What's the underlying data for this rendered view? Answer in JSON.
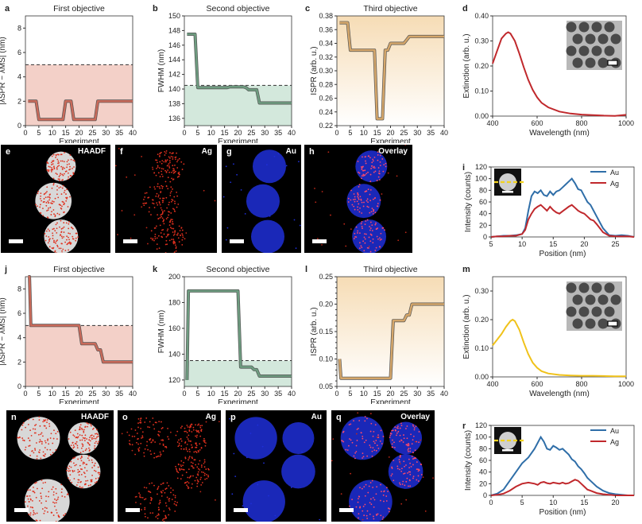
{
  "charts": {
    "a": {
      "letter": "a",
      "title": "First objective",
      "xlabel": "Experiment",
      "ylabel": "|λSPR − λMS| (nm)",
      "xlim": [
        0,
        40
      ],
      "ylim": [
        0,
        9
      ],
      "xticks": [
        0,
        5,
        10,
        15,
        20,
        25,
        30,
        35,
        40
      ],
      "yticks": [
        0,
        2,
        4,
        6,
        8
      ],
      "threshold": 5,
      "shade": "below",
      "shade_color": "#f3d0c8",
      "line_color": "#c86a5a",
      "x": [
        1,
        2,
        3,
        4,
        5,
        6,
        7,
        8,
        9,
        10,
        11,
        12,
        13,
        14,
        15,
        16,
        17,
        18,
        19,
        20,
        21,
        22,
        23,
        24,
        25,
        26,
        27,
        28,
        29,
        30,
        31,
        32,
        33,
        34,
        35,
        36,
        37,
        38,
        39,
        40
      ],
      "y": [
        2,
        2,
        2,
        2,
        0.5,
        0.5,
        0.5,
        0.5,
        0.5,
        0.5,
        0.5,
        0.5,
        0.5,
        0.5,
        2,
        2,
        2,
        0.5,
        0.5,
        0.5,
        0.5,
        0.5,
        0.5,
        0.5,
        0.5,
        0.5,
        2,
        2,
        2,
        2,
        2,
        2,
        2,
        2,
        2,
        2,
        2,
        2,
        2,
        2
      ]
    },
    "b": {
      "letter": "b",
      "title": "Second objective",
      "xlabel": "Experiment",
      "ylabel": "FWHM (nm)",
      "xlim": [
        0,
        40
      ],
      "ylim": [
        135,
        150
      ],
      "xticks": [
        0,
        5,
        10,
        15,
        20,
        25,
        30,
        35,
        40
      ],
      "yticks": [
        136,
        138,
        140,
        142,
        144,
        146,
        148,
        150
      ],
      "threshold": 140.5,
      "shade": "below",
      "shade_color": "#d3e8dc",
      "line_color": "#6e9c80",
      "x": [
        1,
        2,
        3,
        4,
        5,
        6,
        7,
        8,
        9,
        10,
        11,
        12,
        13,
        14,
        15,
        16,
        17,
        18,
        19,
        20,
        21,
        22,
        23,
        24,
        25,
        26,
        27,
        28,
        29,
        30,
        31,
        32,
        33,
        34,
        35,
        36,
        37,
        38,
        39,
        40
      ],
      "y": [
        147.5,
        147.5,
        147.5,
        147.5,
        140.2,
        140.2,
        140.2,
        140.2,
        140.2,
        140.2,
        140.2,
        140.2,
        140.2,
        140.2,
        140.2,
        140.2,
        140.3,
        140.3,
        140.3,
        140.3,
        140.3,
        140.3,
        140.2,
        139.9,
        139.9,
        139.9,
        139.9,
        138.1,
        138.1,
        138.1,
        138.1,
        138.1,
        138.1,
        138.1,
        138.1,
        138.1,
        138.1,
        138.1,
        138.1,
        138.1
      ]
    },
    "c": {
      "letter": "c",
      "title": "Third objective",
      "xlabel": "Experiment",
      "ylabel": "ISPR (arb. u.)",
      "xlim": [
        0,
        40
      ],
      "ylim": [
        0.22,
        0.38
      ],
      "xticks": [
        0,
        5,
        10,
        15,
        20,
        25,
        30,
        35,
        40
      ],
      "yticks": [
        0.22,
        0.24,
        0.26,
        0.28,
        0.3,
        0.32,
        0.34,
        0.36,
        0.38
      ],
      "threshold": null,
      "shade": "full",
      "shade_color": "#f6dcb5",
      "line_color": "#d4a66a",
      "x": [
        1,
        2,
        3,
        4,
        5,
        6,
        7,
        8,
        9,
        10,
        11,
        12,
        13,
        14,
        15,
        16,
        17,
        18,
        19,
        20,
        21,
        22,
        23,
        24,
        25,
        26,
        27,
        28,
        29,
        30,
        31,
        32,
        33,
        34,
        35,
        36,
        37,
        38,
        39,
        40
      ],
      "y": [
        0.37,
        0.37,
        0.37,
        0.37,
        0.33,
        0.33,
        0.33,
        0.33,
        0.33,
        0.33,
        0.33,
        0.33,
        0.33,
        0.33,
        0.23,
        0.23,
        0.23,
        0.33,
        0.33,
        0.34,
        0.34,
        0.34,
        0.34,
        0.34,
        0.34,
        0.345,
        0.35,
        0.35,
        0.35,
        0.35,
        0.35,
        0.35,
        0.35,
        0.35,
        0.35,
        0.35,
        0.35,
        0.35,
        0.35,
        0.35
      ]
    },
    "d": {
      "letter": "d",
      "xlabel": "Wavelength (nm)",
      "ylabel": "Extinction (arb. u.)",
      "xlim": [
        400,
        1000
      ],
      "ylim": [
        0,
        0.4
      ],
      "xticks": [
        400,
        600,
        800,
        1000
      ],
      "yticks": [
        0.0,
        0.1,
        0.2,
        0.3,
        0.4
      ],
      "line_color": "#c0282c",
      "x": [
        400,
        420,
        440,
        460,
        470,
        480,
        500,
        520,
        540,
        560,
        580,
        600,
        620,
        650,
        700,
        750,
        800,
        850,
        900,
        950,
        1000
      ],
      "y": [
        0.21,
        0.26,
        0.31,
        0.33,
        0.335,
        0.33,
        0.3,
        0.25,
        0.195,
        0.145,
        0.105,
        0.075,
        0.053,
        0.035,
        0.018,
        0.01,
        0.006,
        0.004,
        0.002,
        0.001,
        0.005
      ]
    },
    "i": {
      "letter": "i",
      "xlabel": "Position (nm)",
      "ylabel": "Intensity (counts)",
      "xlim": [
        5,
        28
      ],
      "ylim": [
        0,
        120
      ],
      "xticks": [
        5,
        10,
        15,
        20,
        25
      ],
      "yticks": [
        0,
        20,
        40,
        60,
        80,
        100,
        120
      ],
      "legend": [
        {
          "name": "Au",
          "color": "#2f6ea8"
        },
        {
          "name": "Ag",
          "color": "#c0282c"
        }
      ],
      "series": [
        {
          "name": "Au",
          "color": "#2f6ea8",
          "x": [
            5,
            6,
            7,
            8,
            9,
            10,
            10.5,
            11,
            11.5,
            12,
            12.5,
            13,
            13.5,
            14,
            14.5,
            15,
            15.5,
            16,
            16.5,
            17,
            17.5,
            18,
            18.5,
            19,
            19.5,
            20,
            20.5,
            21,
            21.5,
            22,
            23,
            24,
            25,
            26,
            27,
            28
          ],
          "y": [
            0,
            1,
            2,
            2,
            3,
            5,
            15,
            45,
            70,
            78,
            75,
            80,
            72,
            70,
            78,
            72,
            78,
            80,
            85,
            90,
            95,
            100,
            92,
            82,
            80,
            70,
            60,
            55,
            45,
            35,
            15,
            3,
            2,
            3,
            2,
            0
          ]
        },
        {
          "name": "Ag",
          "color": "#c0282c",
          "x": [
            5,
            6,
            7,
            8,
            9,
            10,
            10.5,
            11,
            11.5,
            12,
            12.5,
            13,
            13.5,
            14,
            14.5,
            15,
            15.5,
            16,
            16.5,
            17,
            17.5,
            18,
            18.5,
            19,
            19.5,
            20,
            20.5,
            21,
            21.5,
            22,
            23,
            24,
            25,
            26,
            27,
            28
          ],
          "y": [
            0,
            1,
            1,
            2,
            2,
            5,
            12,
            30,
            40,
            48,
            52,
            55,
            50,
            45,
            52,
            46,
            42,
            40,
            44,
            48,
            52,
            55,
            50,
            45,
            42,
            40,
            35,
            30,
            28,
            22,
            8,
            2,
            1,
            1,
            1,
            0
          ]
        }
      ],
      "inset_line_color": "#f2d21e"
    },
    "j": {
      "letter": "j",
      "title": "First objective",
      "xlabel": "Experiment",
      "ylabel": "|λSPR − λMS| (nm)",
      "xlim": [
        0,
        40
      ],
      "ylim": [
        0,
        9
      ],
      "xticks": [
        0,
        5,
        10,
        15,
        20,
        25,
        30,
        35,
        40
      ],
      "yticks": [
        0,
        2,
        4,
        6,
        8
      ],
      "threshold": 5,
      "shade": "below",
      "shade_color": "#f3d0c8",
      "line_color": "#c86a5a",
      "x": [
        1,
        1.5,
        2,
        3,
        4,
        5,
        6,
        7,
        8,
        9,
        10,
        11,
        12,
        13,
        14,
        15,
        16,
        17,
        18,
        19,
        20,
        21,
        22,
        23,
        24,
        25,
        26,
        27,
        28,
        29,
        30,
        31,
        32,
        33,
        34,
        35,
        36,
        37,
        38,
        39,
        40
      ],
      "y": [
        9,
        9,
        5,
        5,
        5,
        5,
        5,
        5,
        5,
        5,
        5,
        5,
        5,
        5,
        5,
        5,
        5,
        5,
        5,
        5,
        5,
        3.5,
        3.5,
        3.5,
        3.5,
        3.5,
        3.5,
        3,
        3,
        2,
        2,
        2,
        2,
        2,
        2,
        2,
        2,
        2,
        2,
        2,
        2
      ]
    },
    "k": {
      "letter": "k",
      "title": "Second objective",
      "xlabel": "Experiment",
      "ylabel": "FWHM (nm)",
      "xlim": [
        0,
        40
      ],
      "ylim": [
        115,
        200
      ],
      "xticks": [
        0,
        5,
        10,
        15,
        20,
        25,
        30,
        35,
        40
      ],
      "yticks": [
        120,
        140,
        160,
        180,
        200
      ],
      "threshold": 135,
      "shade": "below",
      "shade_color": "#d3e8dc",
      "line_color": "#6e9c80",
      "x": [
        1,
        1.5,
        2,
        3,
        4,
        5,
        6,
        7,
        8,
        9,
        10,
        11,
        12,
        13,
        14,
        15,
        16,
        17,
        18,
        19,
        20,
        21,
        22,
        23,
        24,
        25,
        26,
        27,
        28,
        29,
        30,
        31,
        32,
        33,
        34,
        35,
        36,
        37,
        38,
        39,
        40
      ],
      "y": [
        120,
        189,
        189,
        189,
        189,
        189,
        189,
        189,
        189,
        189,
        189,
        189,
        189,
        189,
        189,
        189,
        189,
        189,
        189,
        189,
        189,
        130,
        130,
        130,
        130,
        130,
        128,
        128,
        123,
        123,
        123,
        123,
        123,
        123,
        123,
        123,
        123,
        123,
        123,
        123,
        123
      ]
    },
    "l": {
      "letter": "l",
      "title": "Third objective",
      "xlabel": "Experiment",
      "ylabel": "ISPR (arb. u.)",
      "xlim": [
        0,
        40
      ],
      "ylim": [
        0.05,
        0.25
      ],
      "xticks": [
        0,
        5,
        10,
        15,
        20,
        25,
        30,
        35,
        40
      ],
      "yticks": [
        0.05,
        0.06,
        0.07,
        0.08,
        0.09,
        0.1,
        0.11,
        0.12,
        0.13,
        0.14,
        0.15,
        0.16,
        0.17,
        0.18,
        0.19,
        0.2,
        0.21,
        0.22,
        0.23,
        0.24,
        0.25
      ],
      "ytick_labels": [
        "0.05",
        "0.10",
        "0.15",
        "0.20",
        "0.25"
      ],
      "threshold": null,
      "shade": "full",
      "shade_color": "#f6dcb5",
      "line_color": "#d4a66a",
      "x": [
        1,
        1.5,
        2,
        3,
        4,
        5,
        6,
        7,
        8,
        9,
        10,
        11,
        12,
        13,
        14,
        15,
        16,
        17,
        18,
        19,
        20,
        21,
        22,
        23,
        24,
        25,
        26,
        27,
        28,
        29,
        30,
        31,
        32,
        33,
        34,
        35,
        36,
        37,
        38,
        39,
        40
      ],
      "y": [
        0.1,
        0.065,
        0.065,
        0.065,
        0.065,
        0.065,
        0.065,
        0.065,
        0.065,
        0.065,
        0.065,
        0.065,
        0.065,
        0.065,
        0.065,
        0.065,
        0.065,
        0.065,
        0.065,
        0.065,
        0.065,
        0.17,
        0.17,
        0.17,
        0.17,
        0.17,
        0.18,
        0.18,
        0.2,
        0.2,
        0.2,
        0.2,
        0.2,
        0.2,
        0.2,
        0.2,
        0.2,
        0.2,
        0.2,
        0.2,
        0.2
      ]
    },
    "m": {
      "letter": "m",
      "xlabel": "Wavelength (nm)",
      "ylabel": "Extinction (arb. u.)",
      "xlim": [
        400,
        1000
      ],
      "ylim": [
        0,
        0.35
      ],
      "xticks": [
        400,
        600,
        800,
        1000
      ],
      "yticks": [
        0.0,
        0.1,
        0.2,
        0.3
      ],
      "line_color": "#f0c21a",
      "x": [
        400,
        420,
        440,
        460,
        480,
        490,
        500,
        520,
        540,
        560,
        580,
        600,
        620,
        650,
        700,
        750,
        800,
        850,
        900,
        950,
        1000
      ],
      "y": [
        0.11,
        0.13,
        0.15,
        0.175,
        0.195,
        0.2,
        0.195,
        0.165,
        0.12,
        0.08,
        0.05,
        0.032,
        0.02,
        0.012,
        0.007,
        0.005,
        0.004,
        0.004,
        0.003,
        0.002,
        0.002
      ]
    },
    "r": {
      "letter": "r",
      "xlabel": "Position (nm)",
      "ylabel": "Intensity (counts)",
      "xlim": [
        0,
        23
      ],
      "ylim": [
        0,
        120
      ],
      "xticks": [
        0,
        5,
        10,
        15,
        20
      ],
      "yticks": [
        0,
        20,
        40,
        60,
        80,
        100,
        120
      ],
      "legend": [
        {
          "name": "Au",
          "color": "#2f6ea8"
        },
        {
          "name": "Ag",
          "color": "#c0282c"
        }
      ],
      "series": [
        {
          "name": "Au",
          "color": "#2f6ea8",
          "x": [
            0,
            1,
            2,
            3,
            4,
            5,
            6,
            7,
            7.5,
            8,
            8.5,
            9,
            9.5,
            10,
            10.5,
            11,
            11.5,
            12,
            12.5,
            13,
            13.5,
            14,
            14.5,
            15,
            15.5,
            16,
            17,
            18,
            19,
            20,
            21,
            22,
            23
          ],
          "y": [
            0,
            3,
            10,
            25,
            40,
            55,
            65,
            80,
            90,
            100,
            92,
            80,
            78,
            85,
            82,
            78,
            80,
            75,
            70,
            62,
            58,
            50,
            45,
            38,
            30,
            25,
            15,
            8,
            4,
            2,
            1,
            0,
            0
          ]
        },
        {
          "name": "Ag",
          "color": "#c0282c",
          "x": [
            0,
            1,
            2,
            3,
            4,
            5,
            6,
            7,
            7.5,
            8,
            8.5,
            9,
            9.5,
            10,
            10.5,
            11,
            11.5,
            12,
            12.5,
            13,
            13.5,
            14,
            14.5,
            15,
            15.5,
            16,
            17,
            18,
            19,
            20,
            21,
            22,
            23
          ],
          "y": [
            0,
            1,
            3,
            8,
            15,
            20,
            22,
            20,
            18,
            22,
            23,
            21,
            20,
            22,
            21,
            20,
            22,
            20,
            21,
            24,
            27,
            25,
            20,
            15,
            10,
            8,
            4,
            2,
            1,
            0,
            0,
            0,
            0
          ]
        }
      ],
      "inset_line_color": "#f2d21e"
    }
  },
  "images": {
    "e": {
      "letter": "e",
      "label": "HAADF",
      "kind": "haadf"
    },
    "f": {
      "letter": "f",
      "label": "Ag",
      "kind": "ag"
    },
    "g": {
      "letter": "g",
      "label": "Au",
      "kind": "au"
    },
    "h": {
      "letter": "h",
      "label": "Overlay",
      "kind": "overlay"
    },
    "n": {
      "letter": "n",
      "label": "HAADF",
      "kind": "haadf"
    },
    "o": {
      "letter": "o",
      "label": "Ag",
      "kind": "ag"
    },
    "p": {
      "letter": "p",
      "label": "Au",
      "kind": "au"
    },
    "q": {
      "letter": "q",
      "label": "Overlay",
      "kind": "overlay"
    }
  }
}
